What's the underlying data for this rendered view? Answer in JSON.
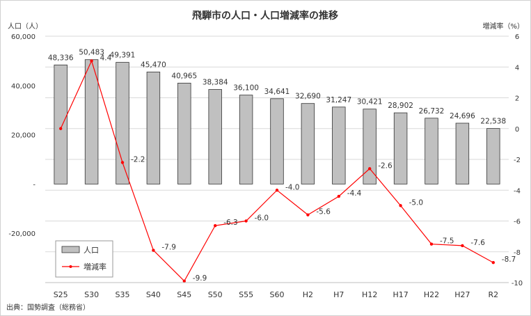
{
  "chart_data": {
    "type": "bar+line",
    "title": "飛騨市の人口・人口増減率の推移",
    "y_left_label": "人口（人）",
    "y_right_label": "増減率（%）",
    "source": "出典：国勢調査（総務省）",
    "categories": [
      "S25",
      "S30",
      "S35",
      "S40",
      "S45",
      "S50",
      "S55",
      "S60",
      "H2",
      "H7",
      "H12",
      "H17",
      "H22",
      "H27",
      "R2"
    ],
    "y_left_range": [
      -40000,
      60000
    ],
    "y_left_ticks": [
      {
        "value": 60000,
        "label": "60,000"
      },
      {
        "value": 40000,
        "label": "40,000"
      },
      {
        "value": 20000,
        "label": "20,000"
      },
      {
        "value": 0,
        "label": "-"
      },
      {
        "value": -20000,
        "label": "-20,000"
      }
    ],
    "y_right_range": [
      -10,
      6
    ],
    "y_right_ticks": [
      {
        "value": 6,
        "label": "6"
      },
      {
        "value": 4,
        "label": "4"
      },
      {
        "value": 2,
        "label": "2"
      },
      {
        "value": 0,
        "label": "0"
      },
      {
        "value": -2,
        "label": "-2"
      },
      {
        "value": -4,
        "label": "-4"
      },
      {
        "value": -6,
        "label": "-6"
      },
      {
        "value": -8,
        "label": "-8"
      },
      {
        "value": -10,
        "label": "-10"
      }
    ],
    "series": [
      {
        "name": "人口",
        "type": "bar",
        "axis": "left",
        "color": "#c0c0c0",
        "values": [
          48336,
          50483,
          49391,
          45470,
          40965,
          38384,
          36100,
          34641,
          32690,
          31247,
          30421,
          28902,
          26732,
          24696,
          22538
        ],
        "labels": [
          "48,336",
          "50,483",
          "49,391",
          "45,470",
          "40,965",
          "38,384",
          "36,100",
          "34,641",
          "32,690",
          "31,247",
          "30,421",
          "28,902",
          "26,732",
          "24,696",
          "22,538"
        ]
      },
      {
        "name": "増減率",
        "type": "line",
        "axis": "right",
        "color": "#ff0000",
        "values": [
          0,
          4.4,
          -2.2,
          -7.9,
          -9.9,
          -6.3,
          -6.0,
          -4.0,
          -5.6,
          -4.4,
          -2.6,
          -5.0,
          -7.5,
          -7.6,
          -8.7
        ],
        "labels": [
          "",
          "4.4",
          "-2.2",
          "-7.9",
          "-9.9",
          "-6.3",
          "-6.0",
          "-4.0",
          "-5.6",
          "-4.4",
          "-2.6",
          "-5.0",
          "-7.5",
          "-7.6",
          "-8.7"
        ]
      }
    ],
    "grid": true,
    "legend_position": "bottom-left"
  }
}
